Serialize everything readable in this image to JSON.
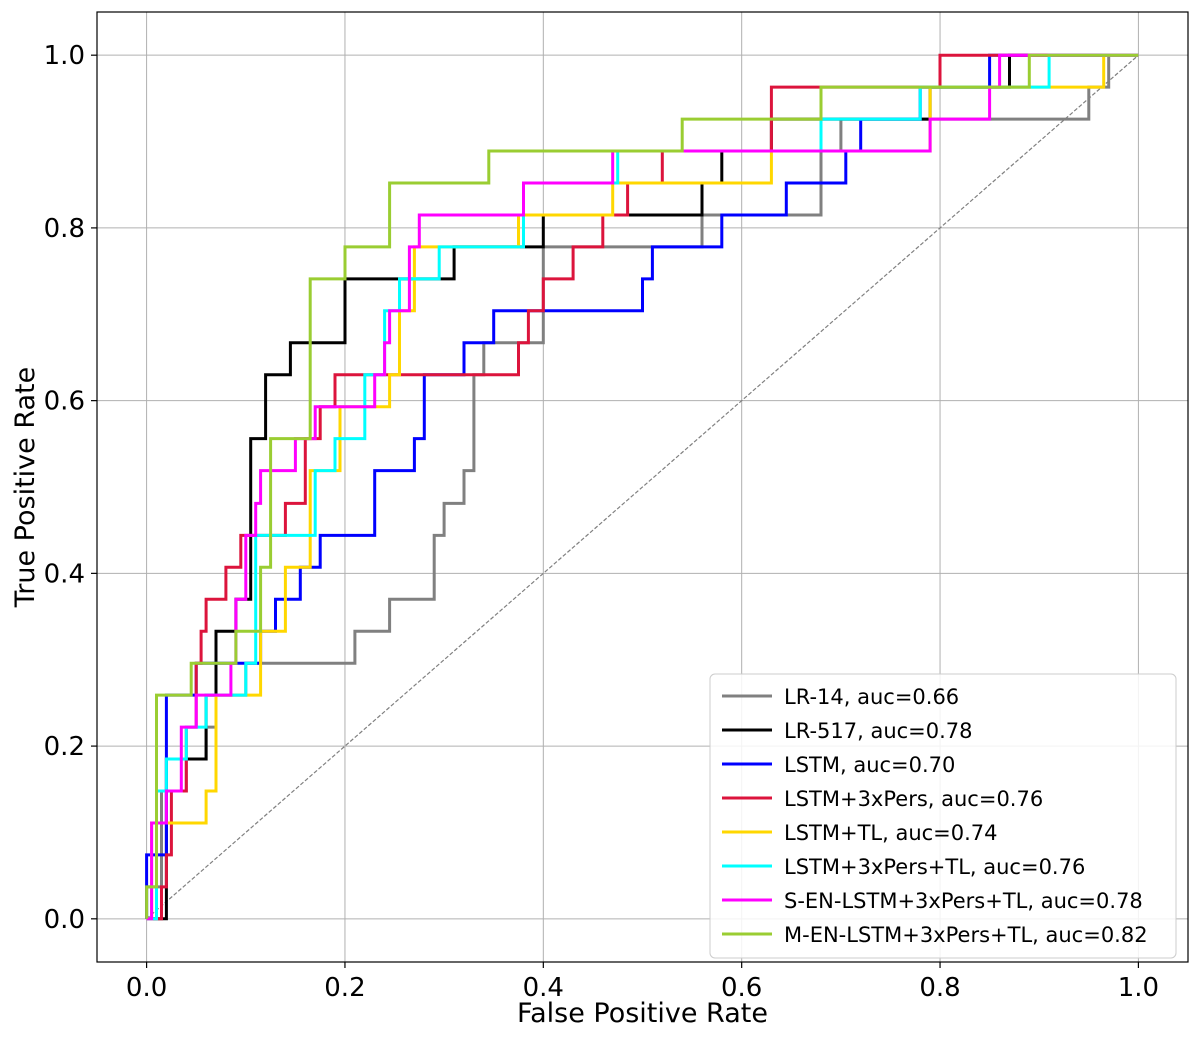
{
  "chart_data": {
    "type": "line",
    "xlabel": "False Positive Rate",
    "ylabel": "True Positive Rate",
    "xlim": [
      -0.05,
      1.05
    ],
    "ylim": [
      -0.05,
      1.05
    ],
    "x_ticks": [
      0.0,
      0.2,
      0.4,
      0.6,
      0.8,
      1.0
    ],
    "x_tick_labels": [
      "0.0",
      "0.2",
      "0.4",
      "0.6",
      "0.8",
      "1.0"
    ],
    "y_ticks": [
      0.0,
      0.2,
      0.4,
      0.6,
      0.8,
      1.0
    ],
    "y_tick_labels": [
      "0.0",
      "0.2",
      "0.4",
      "0.6",
      "0.8",
      "1.0"
    ],
    "grid": true,
    "legend_position": "bottom-right",
    "diagonal": {
      "points": [
        [
          0,
          0
        ],
        [
          1,
          1
        ]
      ],
      "color": "#808080",
      "style": "dashed"
    },
    "series": [
      {
        "name": "LR-14, auc=0.66",
        "color": "#808080",
        "points": [
          [
            0,
            0
          ],
          [
            0,
            0.037
          ],
          [
            0.015,
            0.037
          ],
          [
            0.015,
            0.148
          ],
          [
            0.04,
            0.148
          ],
          [
            0.04,
            0.185
          ],
          [
            0.06,
            0.185
          ],
          [
            0.06,
            0.222
          ],
          [
            0.07,
            0.222
          ],
          [
            0.07,
            0.259
          ],
          [
            0.1,
            0.259
          ],
          [
            0.1,
            0.296
          ],
          [
            0.21,
            0.296
          ],
          [
            0.21,
            0.333
          ],
          [
            0.245,
            0.333
          ],
          [
            0.245,
            0.37
          ],
          [
            0.29,
            0.37
          ],
          [
            0.29,
            0.444
          ],
          [
            0.3,
            0.444
          ],
          [
            0.3,
            0.481
          ],
          [
            0.32,
            0.481
          ],
          [
            0.32,
            0.519
          ],
          [
            0.33,
            0.519
          ],
          [
            0.33,
            0.63
          ],
          [
            0.34,
            0.63
          ],
          [
            0.34,
            0.667
          ],
          [
            0.4,
            0.667
          ],
          [
            0.4,
            0.778
          ],
          [
            0.56,
            0.778
          ],
          [
            0.56,
            0.815
          ],
          [
            0.68,
            0.815
          ],
          [
            0.68,
            0.889
          ],
          [
            0.7,
            0.889
          ],
          [
            0.7,
            0.926
          ],
          [
            0.95,
            0.926
          ],
          [
            0.95,
            0.963
          ],
          [
            0.97,
            0.963
          ],
          [
            0.97,
            1.0
          ],
          [
            1.0,
            1.0
          ]
        ]
      },
      {
        "name": "LR-517, auc=0.78",
        "color": "#000000",
        "points": [
          [
            0,
            0
          ],
          [
            0.02,
            0
          ],
          [
            0.02,
            0.185
          ],
          [
            0.06,
            0.185
          ],
          [
            0.06,
            0.259
          ],
          [
            0.07,
            0.259
          ],
          [
            0.07,
            0.333
          ],
          [
            0.09,
            0.333
          ],
          [
            0.09,
            0.37
          ],
          [
            0.105,
            0.37
          ],
          [
            0.105,
            0.556
          ],
          [
            0.12,
            0.556
          ],
          [
            0.12,
            0.63
          ],
          [
            0.145,
            0.63
          ],
          [
            0.145,
            0.667
          ],
          [
            0.2,
            0.667
          ],
          [
            0.2,
            0.741
          ],
          [
            0.31,
            0.741
          ],
          [
            0.31,
            0.778
          ],
          [
            0.4,
            0.778
          ],
          [
            0.4,
            0.815
          ],
          [
            0.56,
            0.815
          ],
          [
            0.56,
            0.852
          ],
          [
            0.58,
            0.852
          ],
          [
            0.58,
            0.889
          ],
          [
            0.63,
            0.889
          ],
          [
            0.63,
            0.926
          ],
          [
            0.79,
            0.926
          ],
          [
            0.79,
            0.963
          ],
          [
            0.87,
            0.963
          ],
          [
            0.87,
            1.0
          ],
          [
            1.0,
            1.0
          ]
        ]
      },
      {
        "name": "LSTM, auc=0.70",
        "color": "#0000ff",
        "points": [
          [
            0,
            0
          ],
          [
            0,
            0.074
          ],
          [
            0.02,
            0.074
          ],
          [
            0.02,
            0.259
          ],
          [
            0.05,
            0.259
          ],
          [
            0.05,
            0.296
          ],
          [
            0.115,
            0.296
          ],
          [
            0.115,
            0.333
          ],
          [
            0.13,
            0.333
          ],
          [
            0.13,
            0.37
          ],
          [
            0.155,
            0.37
          ],
          [
            0.155,
            0.407
          ],
          [
            0.175,
            0.407
          ],
          [
            0.175,
            0.444
          ],
          [
            0.23,
            0.444
          ],
          [
            0.23,
            0.519
          ],
          [
            0.27,
            0.519
          ],
          [
            0.27,
            0.556
          ],
          [
            0.28,
            0.556
          ],
          [
            0.28,
            0.63
          ],
          [
            0.32,
            0.63
          ],
          [
            0.32,
            0.667
          ],
          [
            0.35,
            0.667
          ],
          [
            0.35,
            0.704
          ],
          [
            0.5,
            0.704
          ],
          [
            0.5,
            0.741
          ],
          [
            0.51,
            0.741
          ],
          [
            0.51,
            0.778
          ],
          [
            0.58,
            0.778
          ],
          [
            0.58,
            0.815
          ],
          [
            0.645,
            0.815
          ],
          [
            0.645,
            0.852
          ],
          [
            0.705,
            0.852
          ],
          [
            0.705,
            0.889
          ],
          [
            0.72,
            0.889
          ],
          [
            0.72,
            0.926
          ],
          [
            0.78,
            0.926
          ],
          [
            0.78,
            0.963
          ],
          [
            0.85,
            0.963
          ],
          [
            0.85,
            1.0
          ],
          [
            1.0,
            1.0
          ]
        ]
      },
      {
        "name": "LSTM+3xPers, auc=0.76",
        "color": "#dc143c",
        "points": [
          [
            0,
            0
          ],
          [
            0.015,
            0
          ],
          [
            0.015,
            0.037
          ],
          [
            0.02,
            0.037
          ],
          [
            0.02,
            0.074
          ],
          [
            0.025,
            0.074
          ],
          [
            0.025,
            0.148
          ],
          [
            0.04,
            0.148
          ],
          [
            0.04,
            0.222
          ],
          [
            0.05,
            0.222
          ],
          [
            0.05,
            0.296
          ],
          [
            0.055,
            0.296
          ],
          [
            0.055,
            0.333
          ],
          [
            0.06,
            0.333
          ],
          [
            0.06,
            0.37
          ],
          [
            0.08,
            0.37
          ],
          [
            0.08,
            0.407
          ],
          [
            0.095,
            0.407
          ],
          [
            0.095,
            0.444
          ],
          [
            0.14,
            0.444
          ],
          [
            0.14,
            0.481
          ],
          [
            0.16,
            0.481
          ],
          [
            0.16,
            0.556
          ],
          [
            0.175,
            0.556
          ],
          [
            0.175,
            0.593
          ],
          [
            0.19,
            0.593
          ],
          [
            0.19,
            0.63
          ],
          [
            0.375,
            0.63
          ],
          [
            0.375,
            0.667
          ],
          [
            0.385,
            0.667
          ],
          [
            0.385,
            0.704
          ],
          [
            0.4,
            0.704
          ],
          [
            0.4,
            0.741
          ],
          [
            0.43,
            0.741
          ],
          [
            0.43,
            0.778
          ],
          [
            0.46,
            0.778
          ],
          [
            0.46,
            0.815
          ],
          [
            0.485,
            0.815
          ],
          [
            0.485,
            0.852
          ],
          [
            0.52,
            0.852
          ],
          [
            0.52,
            0.889
          ],
          [
            0.63,
            0.889
          ],
          [
            0.63,
            0.963
          ],
          [
            0.8,
            0.963
          ],
          [
            0.8,
            1.0
          ],
          [
            1.0,
            1.0
          ]
        ]
      },
      {
        "name": "LSTM+TL, auc=0.74",
        "color": "#ffd700",
        "points": [
          [
            0,
            0
          ],
          [
            0.005,
            0
          ],
          [
            0.005,
            0.111
          ],
          [
            0.06,
            0.111
          ],
          [
            0.06,
            0.148
          ],
          [
            0.07,
            0.148
          ],
          [
            0.07,
            0.259
          ],
          [
            0.115,
            0.259
          ],
          [
            0.115,
            0.333
          ],
          [
            0.14,
            0.333
          ],
          [
            0.14,
            0.407
          ],
          [
            0.165,
            0.407
          ],
          [
            0.165,
            0.519
          ],
          [
            0.195,
            0.519
          ],
          [
            0.195,
            0.593
          ],
          [
            0.245,
            0.593
          ],
          [
            0.245,
            0.63
          ],
          [
            0.255,
            0.63
          ],
          [
            0.255,
            0.704
          ],
          [
            0.27,
            0.704
          ],
          [
            0.27,
            0.778
          ],
          [
            0.375,
            0.778
          ],
          [
            0.375,
            0.815
          ],
          [
            0.47,
            0.815
          ],
          [
            0.47,
            0.852
          ],
          [
            0.63,
            0.852
          ],
          [
            0.63,
            0.889
          ],
          [
            0.79,
            0.889
          ],
          [
            0.79,
            0.963
          ],
          [
            0.965,
            0.963
          ],
          [
            0.965,
            1.0
          ],
          [
            1.0,
            1.0
          ]
        ]
      },
      {
        "name": "LSTM+3xPers+TL, auc=0.76",
        "color": "#00ffff",
        "points": [
          [
            0,
            0
          ],
          [
            0.01,
            0
          ],
          [
            0.01,
            0.148
          ],
          [
            0.02,
            0.148
          ],
          [
            0.02,
            0.185
          ],
          [
            0.04,
            0.185
          ],
          [
            0.04,
            0.222
          ],
          [
            0.06,
            0.222
          ],
          [
            0.06,
            0.259
          ],
          [
            0.1,
            0.259
          ],
          [
            0.1,
            0.296
          ],
          [
            0.11,
            0.296
          ],
          [
            0.11,
            0.444
          ],
          [
            0.17,
            0.444
          ],
          [
            0.17,
            0.519
          ],
          [
            0.19,
            0.519
          ],
          [
            0.19,
            0.556
          ],
          [
            0.22,
            0.556
          ],
          [
            0.22,
            0.63
          ],
          [
            0.24,
            0.63
          ],
          [
            0.24,
            0.704
          ],
          [
            0.255,
            0.704
          ],
          [
            0.255,
            0.741
          ],
          [
            0.295,
            0.741
          ],
          [
            0.295,
            0.778
          ],
          [
            0.38,
            0.778
          ],
          [
            0.38,
            0.852
          ],
          [
            0.475,
            0.852
          ],
          [
            0.475,
            0.889
          ],
          [
            0.68,
            0.889
          ],
          [
            0.68,
            0.926
          ],
          [
            0.78,
            0.926
          ],
          [
            0.78,
            0.963
          ],
          [
            0.91,
            0.963
          ],
          [
            0.91,
            1.0
          ],
          [
            1.0,
            1.0
          ]
        ]
      },
      {
        "name": "S-EN-LSTM+3xPers+TL, auc=0.78",
        "color": "#ff00ff",
        "points": [
          [
            0,
            0
          ],
          [
            0.005,
            0
          ],
          [
            0.005,
            0.111
          ],
          [
            0.02,
            0.111
          ],
          [
            0.02,
            0.148
          ],
          [
            0.035,
            0.148
          ],
          [
            0.035,
            0.222
          ],
          [
            0.05,
            0.222
          ],
          [
            0.05,
            0.259
          ],
          [
            0.085,
            0.259
          ],
          [
            0.085,
            0.296
          ],
          [
            0.09,
            0.296
          ],
          [
            0.09,
            0.37
          ],
          [
            0.1,
            0.37
          ],
          [
            0.1,
            0.444
          ],
          [
            0.11,
            0.444
          ],
          [
            0.11,
            0.481
          ],
          [
            0.115,
            0.481
          ],
          [
            0.115,
            0.519
          ],
          [
            0.15,
            0.519
          ],
          [
            0.15,
            0.556
          ],
          [
            0.17,
            0.556
          ],
          [
            0.17,
            0.593
          ],
          [
            0.23,
            0.593
          ],
          [
            0.23,
            0.63
          ],
          [
            0.24,
            0.63
          ],
          [
            0.24,
            0.667
          ],
          [
            0.245,
            0.667
          ],
          [
            0.245,
            0.704
          ],
          [
            0.265,
            0.704
          ],
          [
            0.265,
            0.778
          ],
          [
            0.275,
            0.778
          ],
          [
            0.275,
            0.815
          ],
          [
            0.38,
            0.815
          ],
          [
            0.38,
            0.852
          ],
          [
            0.47,
            0.852
          ],
          [
            0.47,
            0.889
          ],
          [
            0.79,
            0.889
          ],
          [
            0.79,
            0.926
          ],
          [
            0.85,
            0.926
          ],
          [
            0.85,
            0.963
          ],
          [
            0.86,
            0.963
          ],
          [
            0.86,
            1.0
          ],
          [
            1.0,
            1.0
          ]
        ]
      },
      {
        "name": "M-EN-LSTM+3xPers+TL, auc=0.82",
        "color": "#9acd32",
        "points": [
          [
            0,
            0
          ],
          [
            0,
            0.037
          ],
          [
            0.01,
            0.037
          ],
          [
            0.01,
            0.259
          ],
          [
            0.045,
            0.259
          ],
          [
            0.045,
            0.296
          ],
          [
            0.09,
            0.296
          ],
          [
            0.09,
            0.333
          ],
          [
            0.115,
            0.333
          ],
          [
            0.115,
            0.407
          ],
          [
            0.125,
            0.407
          ],
          [
            0.125,
            0.556
          ],
          [
            0.165,
            0.556
          ],
          [
            0.165,
            0.741
          ],
          [
            0.2,
            0.741
          ],
          [
            0.2,
            0.778
          ],
          [
            0.245,
            0.778
          ],
          [
            0.245,
            0.852
          ],
          [
            0.345,
            0.852
          ],
          [
            0.345,
            0.889
          ],
          [
            0.54,
            0.889
          ],
          [
            0.54,
            0.926
          ],
          [
            0.68,
            0.926
          ],
          [
            0.68,
            0.963
          ],
          [
            0.89,
            0.963
          ],
          [
            0.89,
            1.0
          ],
          [
            1.0,
            1.0
          ]
        ]
      }
    ]
  }
}
